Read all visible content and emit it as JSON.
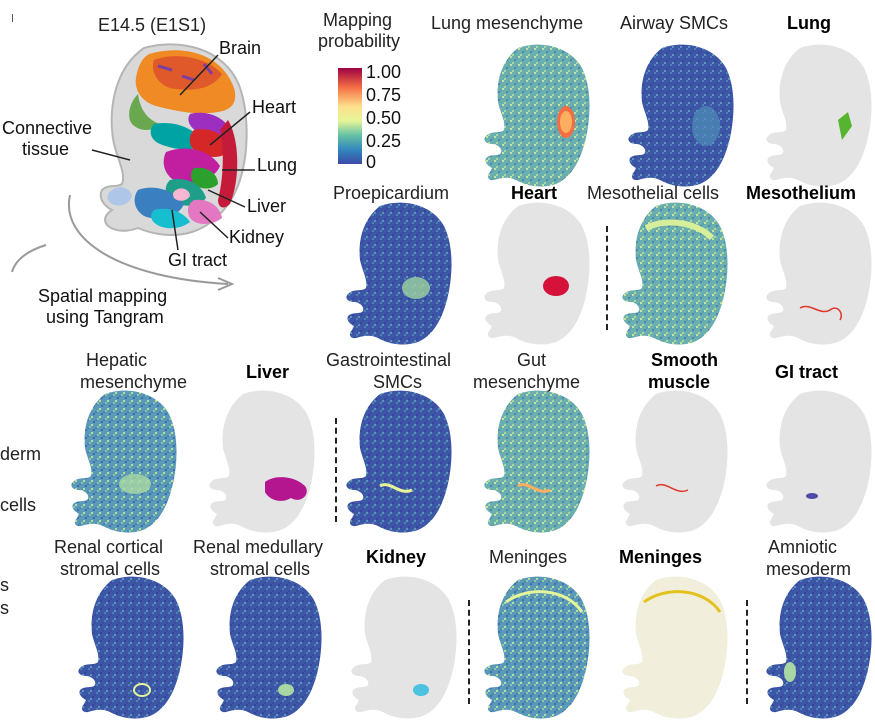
{
  "overview": {
    "title": "E14.5 (E1S1)",
    "annotations": {
      "brain": "Brain",
      "heart": "Heart",
      "connective1": "Connective",
      "connective2": "tissue",
      "lung": "Lung",
      "liver": "Liver",
      "kidney": "Kidney",
      "gi": "GI tract"
    },
    "arrow_label_1": "Spatial mapping",
    "arrow_label_2": "using Tangram"
  },
  "colorbar": {
    "title_1": "Mapping",
    "title_2": "probability",
    "ticks": [
      "1.00",
      "0.75",
      "0.50",
      "0.25",
      "0"
    ],
    "colors": [
      "#9e0142",
      "#f46d43",
      "#fee08b",
      "#e6f598",
      "#66c2a5",
      "#3288bd",
      "#3b4aa8"
    ]
  },
  "cropped_side_labels": [
    "derm",
    "cells",
    "s",
    "s"
  ],
  "panels": {
    "lung_mesenchyme": {
      "l1": "Lung mesenchyme"
    },
    "airway_smcs": {
      "l1": "Airway SMCs"
    },
    "lung": {
      "l1": "Lung"
    },
    "proepicardium": {
      "l1": "Proepicardium"
    },
    "heart": {
      "l1": "Heart"
    },
    "mesothelial_cells": {
      "l1": "Mesothelial cells"
    },
    "mesothelium": {
      "l1": "Mesothelium"
    },
    "hepatic_mesenchyme": {
      "l1": "Hepatic",
      "l2": "mesenchyme"
    },
    "liver": {
      "l1": "Liver"
    },
    "gi_smcs": {
      "l1": "Gastrointestinal",
      "l2": "SMCs"
    },
    "gut_mesenchyme": {
      "l1": "Gut",
      "l2": "mesenchyme"
    },
    "smooth_muscle": {
      "l1": "Smooth",
      "l2": "muscle"
    },
    "gi_tract": {
      "l1": "GI tract"
    },
    "renal_cortical": {
      "l1": "Renal cortical",
      "l2": "stromal cells"
    },
    "renal_medullary": {
      "l1": "Renal medullary",
      "l2": "stromal cells"
    },
    "kidney": {
      "l1": "Kidney"
    },
    "meninges_map": {
      "l1": "Meninges"
    },
    "meninges_anno": {
      "l1": "Meninges"
    },
    "amniotic_mesoderm": {
      "l1": "Amniotic",
      "l2": "mesoderm"
    }
  }
}
